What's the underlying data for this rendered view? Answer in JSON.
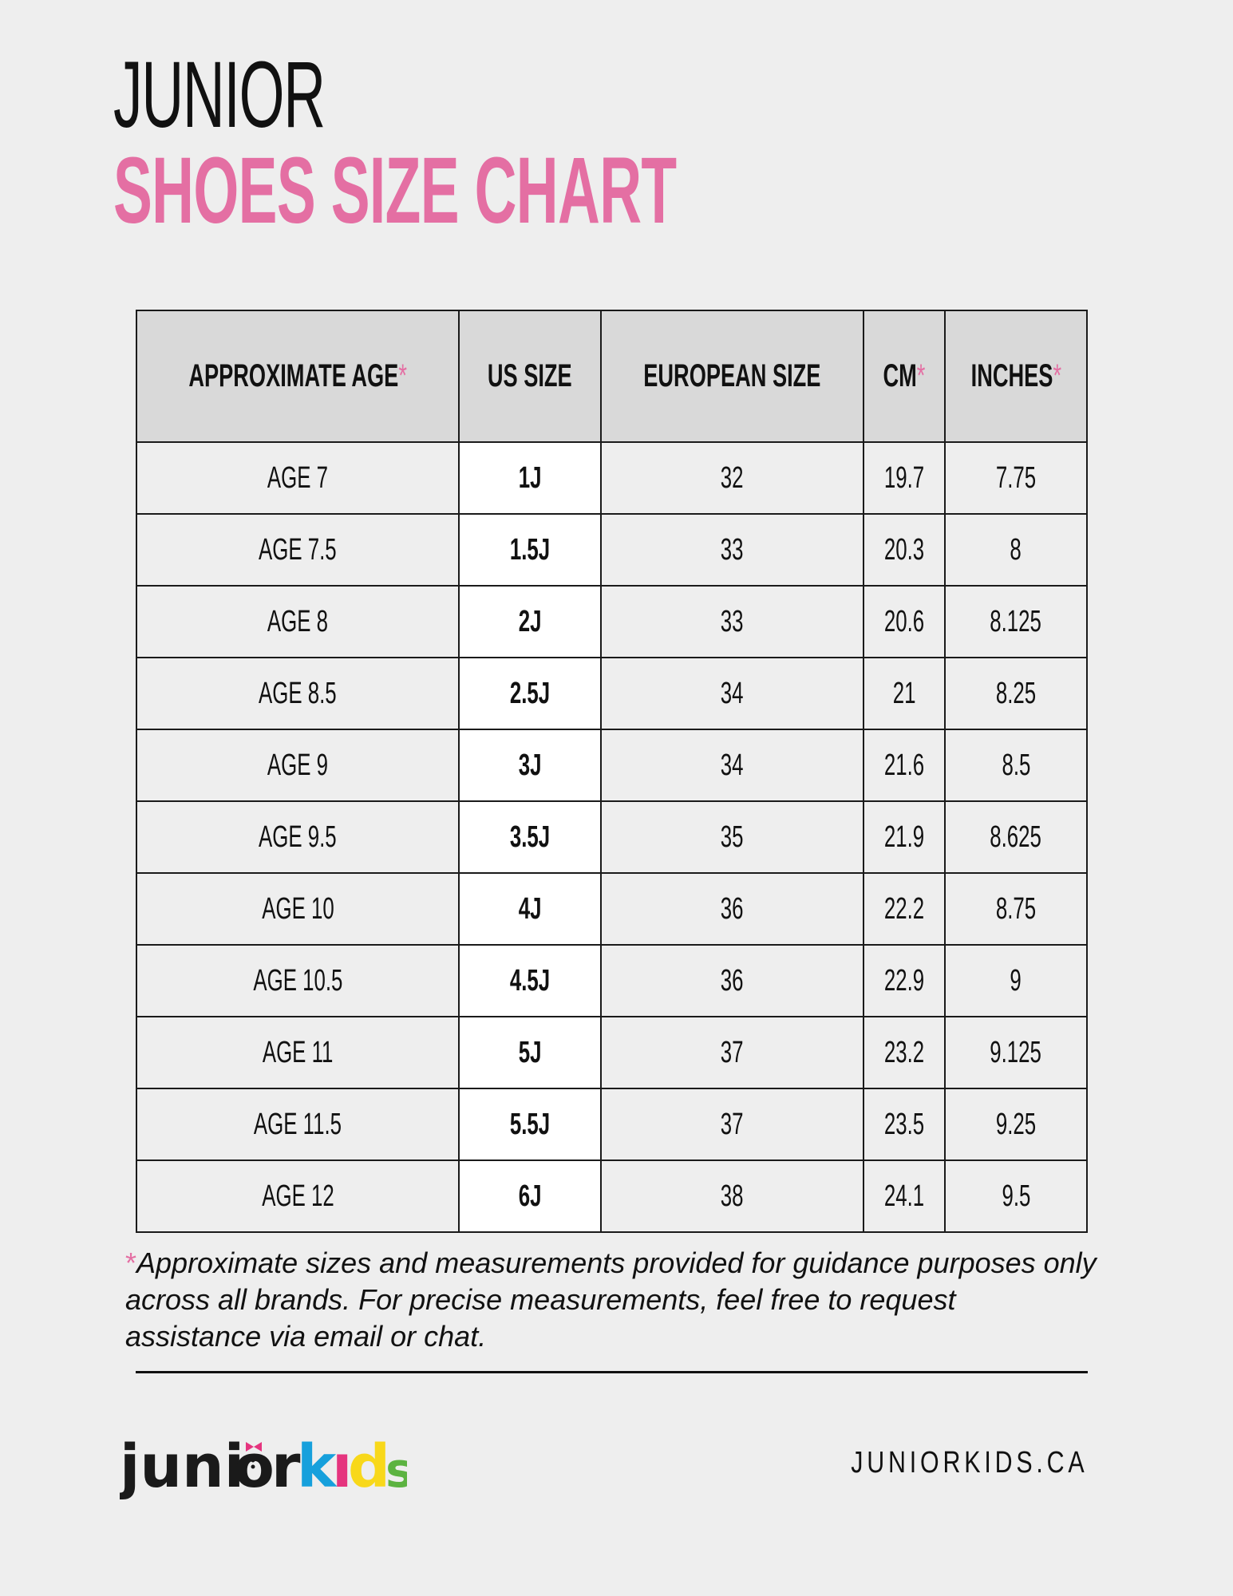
{
  "title": {
    "line1": "JUNIOR",
    "line2": "SHOES SIZE CHART",
    "accent_color": "#e46fa3"
  },
  "table": {
    "headers": [
      {
        "label": "APPROXIMATE AGE",
        "asterisk": "*"
      },
      {
        "label": "US SIZE",
        "asterisk": ""
      },
      {
        "label": "EUROPEAN SIZE",
        "asterisk": ""
      },
      {
        "label": "CM",
        "asterisk": "*"
      },
      {
        "label": "INCHES",
        "asterisk": "*"
      }
    ],
    "rows": [
      [
        "AGE 7",
        "1J",
        "32",
        "19.7",
        "7.75"
      ],
      [
        "AGE 7.5",
        "1.5J",
        "33",
        "20.3",
        "8"
      ],
      [
        "AGE 8",
        "2J",
        "33",
        "20.6",
        "8.125"
      ],
      [
        "AGE 8.5",
        "2.5J",
        "34",
        "21",
        "8.25"
      ],
      [
        "AGE 9",
        "3J",
        "34",
        "21.6",
        "8.5"
      ],
      [
        "AGE 9.5",
        "3.5J",
        "35",
        "21.9",
        "8.625"
      ],
      [
        "AGE 10",
        "4J",
        "36",
        "22.2",
        "8.75"
      ],
      [
        "AGE 10.5",
        "4.5J",
        "36",
        "22.9",
        "9"
      ],
      [
        "AGE 11",
        "5J",
        "37",
        "23.2",
        "9.125"
      ],
      [
        "AGE 11.5",
        "5.5J",
        "37",
        "23.5",
        "9.25"
      ],
      [
        "AGE 12",
        "6J",
        "38",
        "24.1",
        "9.5"
      ]
    ]
  },
  "note": {
    "asterisk": "*",
    "text": "Approximate sizes and measurements provided for guidance purposes only across all brands. For precise measurements, feel free to request assistance via email or chat."
  },
  "footer": {
    "logo_text": "juniorkids",
    "url": "JUNIORKIDS.CA"
  }
}
